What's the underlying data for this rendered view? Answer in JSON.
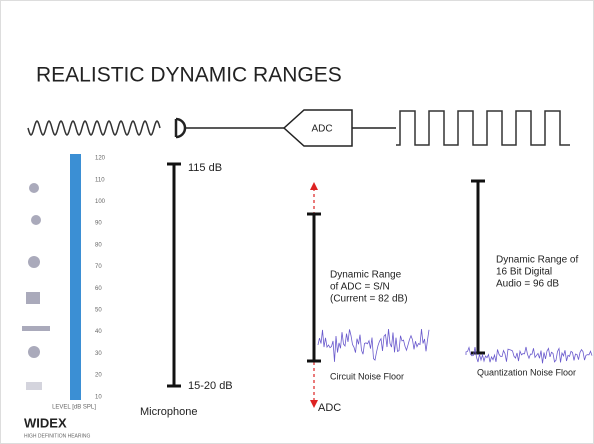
{
  "slide": {
    "title": "REALISTIC DYNAMIC RANGES",
    "adc_box": "ADC",
    "level_scale": {
      "ticks": [
        "120",
        "110",
        "100",
        "90",
        "80",
        "70",
        "60",
        "50",
        "40",
        "30",
        "20",
        "10"
      ],
      "axis_label": "LEVEL [dB SPL]"
    },
    "logo": {
      "name": "WIDEX",
      "tagline": "HIGH DEFINITION HEARING"
    },
    "microphone": {
      "top": "115 dB",
      "bottom": "15-20 dB",
      "label": "Microphone"
    },
    "adc": {
      "description": [
        "Dynamic Range",
        "of ADC = S/N",
        "(Current = 82 dB)"
      ],
      "noise": "Circuit Noise Floor",
      "label": "ADC"
    },
    "digital": {
      "description": [
        "Dynamic Range of",
        "16 Bit Digital",
        "Audio = 96 dB"
      ],
      "noise": "Quantization Noise Floor"
    }
  }
}
